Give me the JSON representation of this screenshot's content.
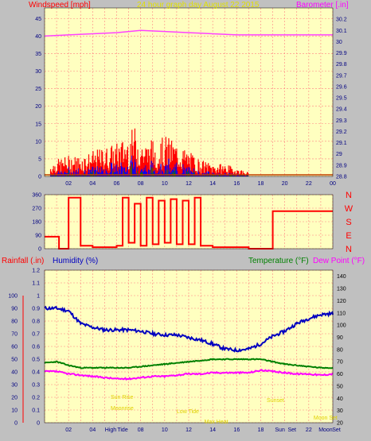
{
  "colors": {
    "background": "#c0c0c0",
    "plot_bg": "#ffffc0",
    "grid": "#ff8080",
    "wind": "#ff0000",
    "gust": "#0000ff",
    "avg_wind": "#008000",
    "barometer": "#ff40ff",
    "humidity": "#0000c0",
    "temperature": "#008000",
    "dewpoint": "#ff00ff",
    "rain": "#ff0000",
    "annotation": "#e0d000"
  },
  "header": {
    "left": "Windspeed [mph]",
    "center": "24 hour graph day   August 22 2015",
    "right": "Barometer [.in]"
  },
  "panel3": {
    "rainfall_label": "Rainfall (.in)",
    "humidity_label": "Humidity (%)",
    "temperature_label": "Temperature (°F)",
    "dewpoint_label": "Dew Point (°F)"
  },
  "chart_data": [
    {
      "type": "line",
      "series": [
        {
          "name": "Windspeed [mph]",
          "color": "#ff0000",
          "x": [
            0.5,
            1,
            2,
            3,
            4,
            5,
            6,
            6.5,
            7,
            7.5,
            8,
            8.5,
            9,
            9.5,
            10,
            10.5,
            11,
            11.5,
            12,
            12.5,
            13,
            14,
            15,
            16,
            17,
            18,
            19,
            20,
            22,
            24
          ],
          "values": [
            3,
            4,
            5,
            5,
            6,
            7,
            8,
            9,
            10,
            12,
            9,
            8,
            9,
            8,
            10,
            9,
            8,
            7,
            6,
            5,
            4,
            3,
            3,
            2,
            1,
            0,
            0,
            0,
            0,
            0
          ]
        },
        {
          "name": "Barometer [.in]",
          "color": "#ff40ff",
          "axis": "right",
          "x": [
            0,
            2,
            4,
            6,
            8,
            10,
            12,
            14,
            16,
            18,
            20,
            22,
            24
          ],
          "values": [
            30.05,
            30.06,
            30.07,
            30.08,
            30.1,
            30.09,
            30.08,
            30.07,
            30.06,
            30.06,
            30.06,
            30.06,
            30.06
          ]
        }
      ],
      "xticks": [
        "02",
        "04",
        "06",
        "08",
        "10",
        "12",
        "14",
        "16",
        "18",
        "20",
        "22",
        "00"
      ],
      "yticks_left": [
        "0",
        "5",
        "10",
        "15",
        "20",
        "25",
        "30",
        "35",
        "40",
        "45"
      ],
      "yticks_right": [
        "28.8",
        "28.9",
        "29",
        "29.1",
        "29.2",
        "29.3",
        "29.4",
        "29.5",
        "29.6",
        "29.7",
        "29.8",
        "29.9",
        "30",
        "30.1",
        "30.2"
      ],
      "xlim": [
        0,
        24
      ],
      "ylim_left": [
        0,
        48
      ],
      "ylim_right": [
        28.8,
        30.3
      ],
      "grid": true
    },
    {
      "type": "line",
      "series": [
        {
          "name": "Wind direction",
          "color": "#ff0000",
          "x": [
            0,
            1,
            1.2,
            2,
            2.5,
            3,
            3.5,
            4,
            5,
            6,
            6.5,
            7,
            7.5,
            8,
            8.5,
            9,
            9.5,
            10,
            10.5,
            11,
            11.5,
            12,
            12.5,
            13,
            14,
            15,
            16,
            17,
            18,
            18.5,
            19,
            20,
            22,
            24
          ],
          "values": [
            80,
            80,
            0,
            340,
            340,
            20,
            20,
            10,
            10,
            20,
            340,
            40,
            300,
            20,
            340,
            30,
            320,
            40,
            330,
            30,
            320,
            30,
            340,
            20,
            10,
            10,
            10,
            0,
            0,
            0,
            250,
            250,
            250,
            250
          ]
        }
      ],
      "yticks": [
        "0",
        "90",
        "180",
        "270",
        "360"
      ],
      "ylim": [
        0,
        360
      ],
      "xlim": [
        0,
        24
      ],
      "compass": [
        "N",
        "W",
        "S",
        "E",
        "N"
      ],
      "grid": true
    },
    {
      "type": "line",
      "series": [
        {
          "name": "Humidity (%)",
          "color": "#0000c0",
          "axis": "left",
          "x": [
            0,
            1,
            2,
            3,
            4,
            5,
            6,
            7,
            8,
            9,
            10,
            11,
            12,
            13,
            14,
            15,
            16,
            17,
            18,
            19,
            20,
            21,
            22,
            23,
            24
          ],
          "values": [
            90,
            90,
            88,
            78,
            75,
            73,
            73,
            73,
            72,
            70,
            69,
            69,
            67,
            65,
            62,
            58,
            57,
            58,
            62,
            68,
            72,
            78,
            82,
            85,
            86
          ]
        },
        {
          "name": "Temperature (°F)",
          "color": "#008000",
          "axis": "right",
          "x": [
            0,
            1,
            2,
            3,
            4,
            5,
            6,
            7,
            8,
            9,
            10,
            11,
            12,
            13,
            14,
            15,
            16,
            17,
            18,
            19,
            20,
            21,
            22,
            23,
            24
          ],
          "values": [
            69,
            70,
            67,
            65,
            65,
            65,
            65,
            65,
            66,
            67,
            68,
            69,
            70,
            71,
            72,
            72,
            72,
            72,
            72,
            70,
            68,
            67,
            66,
            65,
            65
          ]
        },
        {
          "name": "Dew Point (°F)",
          "color": "#ff00ff",
          "axis": "right",
          "x": [
            0,
            1,
            2,
            3,
            4,
            5,
            6,
            7,
            8,
            9,
            10,
            11,
            12,
            13,
            14,
            15,
            16,
            17,
            18,
            19,
            20,
            21,
            22,
            23,
            24
          ],
          "values": [
            62,
            62,
            60,
            59,
            58,
            57,
            56,
            56,
            57,
            58,
            58,
            59,
            60,
            60,
            61,
            61,
            61,
            61,
            63,
            62,
            61,
            60,
            60,
            59,
            60
          ]
        }
      ],
      "yticks_left": [
        "0",
        "0.1",
        "0.2",
        "0.3",
        "0.4",
        "0.5",
        "0.6",
        "0.7",
        "0.8",
        "0.9",
        "1",
        "1.1",
        "1.2"
      ],
      "yticks_left_outer": [
        "0",
        "10",
        "20",
        "30",
        "40",
        "50",
        "60",
        "70",
        "80",
        "90",
        "100"
      ],
      "yticks_right": [
        "20",
        "30",
        "40",
        "50",
        "60",
        "70",
        "80",
        "90",
        "100",
        "110",
        "120",
        "130",
        "140"
      ],
      "xticks": [
        "02",
        "04",
        "High",
        "Tide",
        "08",
        "10",
        "12",
        "14",
        "16",
        "18",
        "Sun",
        "Set",
        "22",
        "Moon",
        "Set"
      ],
      "annotations": [
        "Sun Rise",
        "Moonrise",
        "Low Tide",
        "Max Heat",
        "Sunset",
        "Moon Set"
      ],
      "ylim_left": [
        0,
        1.2
      ],
      "ylim_right": [
        20,
        145
      ],
      "xlim": [
        0,
        24
      ],
      "grid": true
    }
  ]
}
